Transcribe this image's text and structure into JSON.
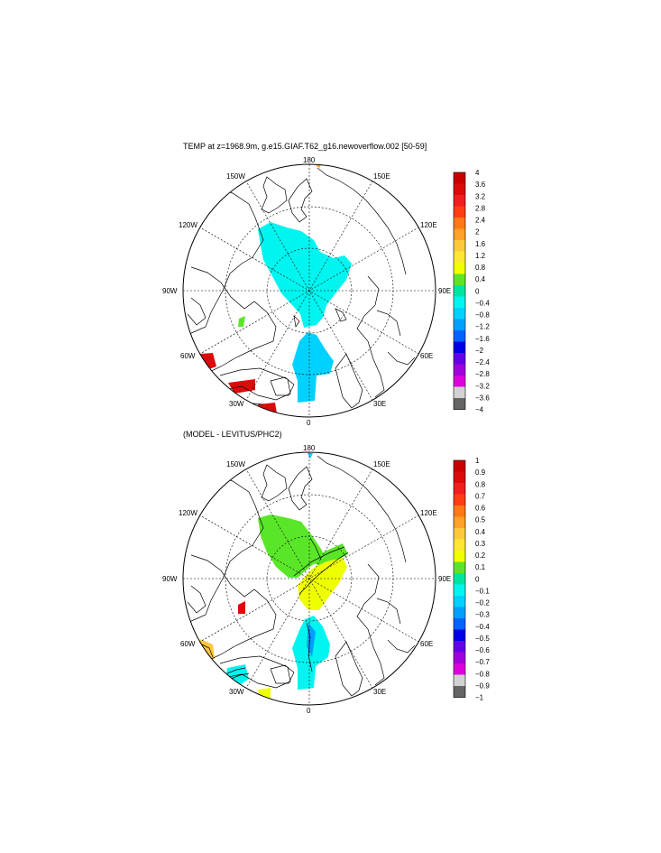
{
  "top_panel": {
    "title": "TEMP at z=1968.9m, g.e15.GIAF.T62_g16.newoverflow.002 [50-59]",
    "lon_labels": {
      "top": "180",
      "bottom": "0",
      "left": "90W",
      "right": "90E",
      "upper_left_150": "150W",
      "upper_left_120": "120W",
      "upper_right_150": "150E",
      "upper_right_120": "120E",
      "lower_left_60": "60W",
      "lower_left_30": "30W",
      "lower_right_60": "60E",
      "lower_right_30": "30E"
    },
    "colorbar": {
      "labels": [
        "4",
        "3.6",
        "3.2",
        "2.8",
        "2.4",
        "2",
        "1.6",
        "1.2",
        "0.8",
        "0.4",
        "0",
        "−0.4",
        "−0.8",
        "−1.2",
        "−1.6",
        "−2",
        "−2.4",
        "−2.8",
        "−3.2",
        "−3.6",
        "−4"
      ],
      "colors": [
        "#c80000",
        "#dc0a0a",
        "#f01e1e",
        "#ff3c14",
        "#ff7814",
        "#ffa028",
        "#ffc83c",
        "#ffe632",
        "#f0ff00",
        "#5ae628",
        "#00e6a0",
        "#00f5f0",
        "#00d2ff",
        "#00a0ff",
        "#0064ff",
        "#0000e6",
        "#6400e6",
        "#a000dc",
        "#dc00dc",
        "#d2d2d2",
        "#646464"
      ]
    }
  },
  "bottom_panel": {
    "title": "(MODEL - LEVITUS/PHC2)",
    "lon_labels": {
      "top": "180",
      "bottom": "0",
      "left": "90W",
      "right": "90E",
      "upper_left_150": "150W",
      "upper_left_120": "120W",
      "upper_right_150": "150E",
      "upper_right_120": "120E",
      "lower_left_60": "60W",
      "lower_left_30": "30W",
      "lower_right_60": "60E",
      "lower_right_30": "30E"
    },
    "colorbar": {
      "labels": [
        "1",
        "0.9",
        "0.8",
        "0.7",
        "0.6",
        "0.5",
        "0.4",
        "0.3",
        "0.2",
        "0.1",
        "0",
        "−0.1",
        "−0.2",
        "−0.3",
        "−0.4",
        "−0.5",
        "−0.6",
        "−0.7",
        "−0.8",
        "−0.9",
        "−1"
      ],
      "colors": [
        "#c80000",
        "#dc0a0a",
        "#f01e1e",
        "#ff3c14",
        "#ff7814",
        "#ffa028",
        "#ffc83c",
        "#ffe632",
        "#f0ff00",
        "#5ae628",
        "#00e6a0",
        "#00f5f0",
        "#00d2ff",
        "#00a0ff",
        "#0064ff",
        "#0000e6",
        "#6400e6",
        "#a000dc",
        "#dc00dc",
        "#d2d2d2",
        "#646464"
      ]
    }
  }
}
